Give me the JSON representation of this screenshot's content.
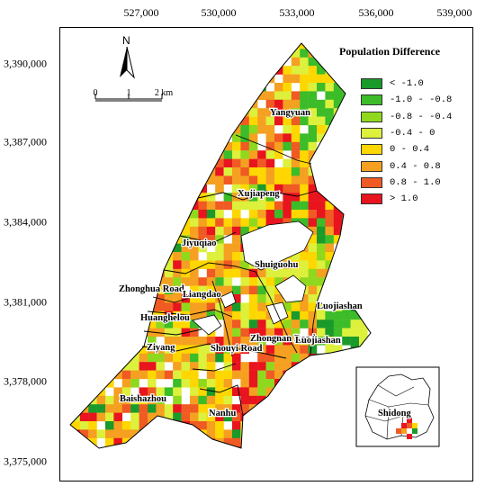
{
  "x_ticks": [
    {
      "label": "527,000",
      "x_value": 527000
    },
    {
      "label": "530,000",
      "x_value": 530000
    },
    {
      "label": "533,000",
      "x_value": 533000
    },
    {
      "label": "536,000",
      "x_value": 536000
    },
    {
      "label": "539,000",
      "x_value": 539000
    }
  ],
  "y_ticks": [
    {
      "label": "3,390,000",
      "y_value": 3390000
    },
    {
      "label": "3,387,000",
      "y_value": 3387000
    },
    {
      "label": "3,384,000",
      "y_value": 3384000
    },
    {
      "label": "3,381,000",
      "y_value": 3381000
    },
    {
      "label": "3,378,000",
      "y_value": 3378000
    },
    {
      "label": "3,375,000",
      "y_value": 3375000
    }
  ],
  "north_arrow": {
    "label": "N",
    "icon": "north-arrow-icon"
  },
  "scale_bar": {
    "labels": [
      "0",
      "1",
      "2 km"
    ]
  },
  "legend": {
    "title": "Population Difference",
    "items": [
      {
        "label": "< -1.0",
        "color": "#1a9a2a"
      },
      {
        "label": "-1.0 - -0.8",
        "color": "#3cbc28"
      },
      {
        "label": "-0.8 - -0.4",
        "color": "#90d81e"
      },
      {
        "label": "-0.4 - 0",
        "color": "#dcf03c"
      },
      {
        "label": "0 - 0.4",
        "color": "#ffd700"
      },
      {
        "label": "0.4 - 0.8",
        "color": "#f5a020"
      },
      {
        "label": "0.8 - 1.0",
        "color": "#f05a23"
      },
      {
        "label": "> 1.0",
        "color": "#e8141e"
      }
    ]
  },
  "districts": [
    {
      "name": "Yangyuan"
    },
    {
      "name": "Xujiapeng"
    },
    {
      "name": "Jiyuqiao"
    },
    {
      "name": "Shuiguohu"
    },
    {
      "name": "Zhonghua Road"
    },
    {
      "name": "Liangdao"
    },
    {
      "name": "Huanghelou"
    },
    {
      "name": "Luojiashan"
    },
    {
      "name": "Ziyang"
    },
    {
      "name": "Shouyi Road"
    },
    {
      "name": "Zhongnan Road"
    },
    {
      "name": "Luojiashan"
    },
    {
      "name": "Baishazhou"
    },
    {
      "name": "Nanhu"
    }
  ],
  "inset": {
    "label": "Shidong"
  }
}
